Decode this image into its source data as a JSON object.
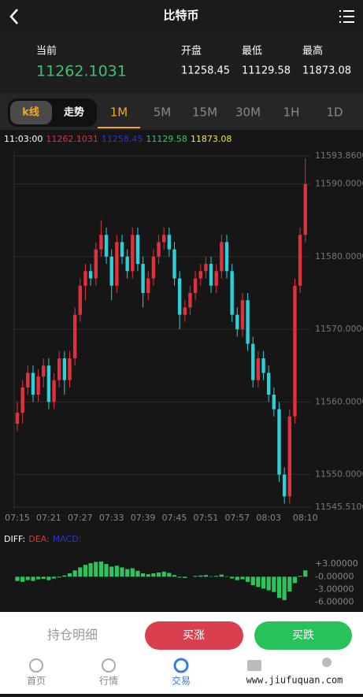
{
  "header": {
    "title": "比特币"
  },
  "stats": {
    "current": {
      "label": "当前",
      "value": 11262.1031
    },
    "open": {
      "label": "开盘",
      "value": 11258.45
    },
    "low": {
      "label": "最低",
      "value": 11129.58
    },
    "high": {
      "label": "最高",
      "value": 11873.08
    }
  },
  "tabs": {
    "modes": [
      "k线",
      "走势"
    ],
    "periods": [
      "1M",
      "5M",
      "15M",
      "30M",
      "1H",
      "1D"
    ],
    "active_period": 0
  },
  "kline": {
    "time": "11:03:00",
    "info": [
      11262.1031,
      11258.45,
      11129.58,
      11873.08
    ],
    "info_colors": [
      "#e0313d",
      "#2a36c8",
      "#3cc36b",
      "#f4e23c"
    ],
    "ylim": [
      11545.51,
      11593.86
    ],
    "yticks": [
      {
        "value": 11593.86,
        "label": "11593.8600"
      },
      {
        "value": 11590,
        "label": "11590.0000"
      },
      {
        "value": 11580,
        "label": "11580.0000"
      },
      {
        "value": 11570,
        "label": "11570.0000"
      },
      {
        "value": 11560,
        "label": "11560.0000"
      },
      {
        "value": 11550,
        "label": "11550.0000"
      },
      {
        "value": 11545.51,
        "label": "11545.5100"
      }
    ],
    "categories": [
      "07:15",
      null,
      null,
      null,
      null,
      null,
      "07:21",
      null,
      null,
      null,
      null,
      null,
      "07:27",
      null,
      null,
      null,
      null,
      null,
      "07:33",
      null,
      null,
      null,
      null,
      null,
      "07:39",
      null,
      null,
      null,
      null,
      null,
      "07:45",
      null,
      null,
      null,
      null,
      null,
      "07:51",
      null,
      null,
      null,
      null,
      null,
      "07:57",
      null,
      null,
      null,
      null,
      null,
      "08:03",
      null,
      null,
      null,
      null,
      null,
      null,
      "08:10"
    ],
    "candles": [
      [
        11557,
        11560,
        11556,
        11558.5
      ],
      [
        11558.5,
        11563,
        11557,
        11562
      ],
      [
        11562,
        11565,
        11561,
        11564
      ],
      [
        11564,
        11565,
        11560,
        11561
      ],
      [
        11561,
        11564.5,
        11560,
        11563.5
      ],
      [
        11563.5,
        11566,
        11562,
        11565
      ],
      [
        11565,
        11566,
        11559,
        11560
      ],
      [
        11560,
        11564,
        11559,
        11563
      ],
      [
        11563,
        11567,
        11562,
        11566
      ],
      [
        11566,
        11567,
        11561,
        11563
      ],
      [
        11563,
        11567,
        11562,
        11566
      ],
      [
        11566,
        11573,
        11565,
        11572
      ],
      [
        11572,
        11577,
        11571,
        11576
      ],
      [
        11576,
        11579,
        11574,
        11578
      ],
      [
        11578,
        11579,
        11576,
        11577
      ],
      [
        11577,
        11582,
        11576,
        11581
      ],
      [
        11581,
        11585,
        11580,
        11583
      ],
      [
        11583,
        11584,
        11579,
        11580
      ],
      [
        11580,
        11581,
        11574,
        11576
      ],
      [
        11576,
        11583,
        11575,
        11582
      ],
      [
        11582,
        11583,
        11579,
        11580
      ],
      [
        11580,
        11581,
        11577,
        11578
      ],
      [
        11578,
        11584,
        11577,
        11583
      ],
      [
        11583,
        11584,
        11578,
        11579
      ],
      [
        11579,
        11580,
        11573,
        11575
      ],
      [
        11575,
        11578,
        11574,
        11577
      ],
      [
        11577,
        11581,
        11576,
        11580
      ],
      [
        11580,
        11583,
        11579,
        11582
      ],
      [
        11582,
        11584,
        11581,
        11583
      ],
      [
        11583,
        11584,
        11580,
        11581
      ],
      [
        11581,
        11582,
        11576,
        11577
      ],
      [
        11577,
        11578,
        11570,
        11572
      ],
      [
        11572,
        11574,
        11571,
        11573
      ],
      [
        11573,
        11576,
        11572,
        11575
      ],
      [
        11575,
        11578,
        11574,
        11577
      ],
      [
        11577,
        11579,
        11576,
        11578
      ],
      [
        11578,
        11580,
        11577,
        11579
      ],
      [
        11579,
        11580,
        11575,
        11576
      ],
      [
        11576,
        11579,
        11575,
        11578
      ],
      [
        11578,
        11583,
        11577,
        11582
      ],
      [
        11582,
        11583,
        11577,
        11578
      ],
      [
        11578,
        11579,
        11571,
        11572
      ],
      [
        11572,
        11573,
        11569,
        11570
      ],
      [
        11570,
        11575,
        11569,
        11574
      ],
      [
        11574,
        11575,
        11567,
        11568
      ],
      [
        11568,
        11569,
        11562,
        11563
      ],
      [
        11563,
        11567,
        11562,
        11566
      ],
      [
        11566,
        11567,
        11563,
        11564
      ],
      [
        11564,
        11565,
        11560,
        11561
      ],
      [
        11561,
        11562,
        11558,
        11559
      ],
      [
        11559,
        11560,
        11549,
        11550
      ],
      [
        11550,
        11551,
        11546,
        11547
      ],
      [
        11547,
        11559,
        11546,
        11558
      ],
      [
        11558,
        11577,
        11557,
        11576
      ],
      [
        11576,
        11584,
        11575,
        11583
      ],
      [
        11583,
        11593.5,
        11582,
        11590
      ]
    ],
    "colors": {
      "up": "#e0313d",
      "down": "#2bd0d8"
    }
  },
  "macd": {
    "labels": [
      "DIFF:",
      "DEA:",
      "MACD:"
    ],
    "label_colors": [
      "#ffffff",
      "#e0313d",
      "#2a36c8"
    ],
    "ylim": [
      -7,
      6
    ],
    "yticks": [
      {
        "value": 3,
        "label": "+3.00000"
      },
      {
        "value": 0,
        "label": "-0.00000"
      },
      {
        "value": -3,
        "label": "-3.00000"
      },
      {
        "value": -6,
        "label": "-6.00000"
      }
    ],
    "values": [
      -1,
      -1.2,
      -0.8,
      -1,
      -0.6,
      -0.5,
      -0.8,
      -0.4,
      -0.2,
      0.3,
      0.8,
      1.5,
      2.2,
      2.8,
      3.2,
      3.5,
      3.6,
      3,
      2.4,
      2.6,
      2.2,
      1.8,
      2,
      1.4,
      0.8,
      0.6,
      0.8,
      1,
      1.2,
      0.9,
      0.4,
      -0.2,
      -0.3,
      0,
      0.2,
      0.3,
      0.4,
      0.1,
      0.2,
      0.5,
      0.1,
      -0.4,
      -0.8,
      -0.6,
      -1.2,
      -2,
      -2.4,
      -2.8,
      -3.2,
      -3.6,
      -5,
      -5.5,
      -3.5,
      -1.5,
      0.2,
      1.5
    ],
    "color": "#2ec45c"
  },
  "actions": {
    "holdings": "持仓明细",
    "buy_up": "买涨",
    "buy_down": "买跌"
  },
  "nav": [
    "首页",
    "行情",
    "交易"
  ],
  "watermark": "www.jiufuquan.com"
}
